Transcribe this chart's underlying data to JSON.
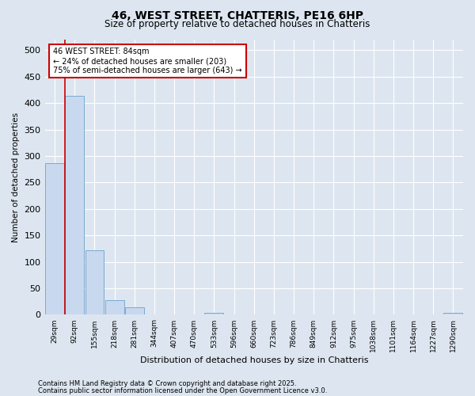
{
  "title": "46, WEST STREET, CHATTERIS, PE16 6HP",
  "subtitle": "Size of property relative to detached houses in Chatteris",
  "xlabel": "Distribution of detached houses by size in Chatteris",
  "ylabel": "Number of detached properties",
  "bar_color": "#c8d8ee",
  "bar_edge_color": "#7aaad0",
  "background_color": "#dde6f0",
  "grid_color": "#ffffff",
  "bins": [
    "29sqm",
    "92sqm",
    "155sqm",
    "218sqm",
    "281sqm",
    "344sqm",
    "407sqm",
    "470sqm",
    "533sqm",
    "596sqm",
    "660sqm",
    "723sqm",
    "786sqm",
    "849sqm",
    "912sqm",
    "975sqm",
    "1038sqm",
    "1101sqm",
    "1164sqm",
    "1227sqm",
    "1290sqm"
  ],
  "values": [
    287,
    413,
    122,
    28,
    14,
    0,
    0,
    0,
    4,
    0,
    0,
    0,
    0,
    0,
    0,
    0,
    0,
    0,
    0,
    0,
    4
  ],
  "ylim": [
    0,
    520
  ],
  "yticks": [
    0,
    50,
    100,
    150,
    200,
    250,
    300,
    350,
    400,
    450,
    500
  ],
  "red_line_bin_index": 1,
  "annotation_text": "46 WEST STREET: 84sqm\n← 24% of detached houses are smaller (203)\n75% of semi-detached houses are larger (643) →",
  "annotation_box_color": "#ffffff",
  "annotation_border_color": "#cc0000",
  "footer_line1": "Contains HM Land Registry data © Crown copyright and database right 2025.",
  "footer_line2": "Contains public sector information licensed under the Open Government Licence v3.0.",
  "figsize": [
    6.0,
    5.0
  ],
  "dpi": 100
}
